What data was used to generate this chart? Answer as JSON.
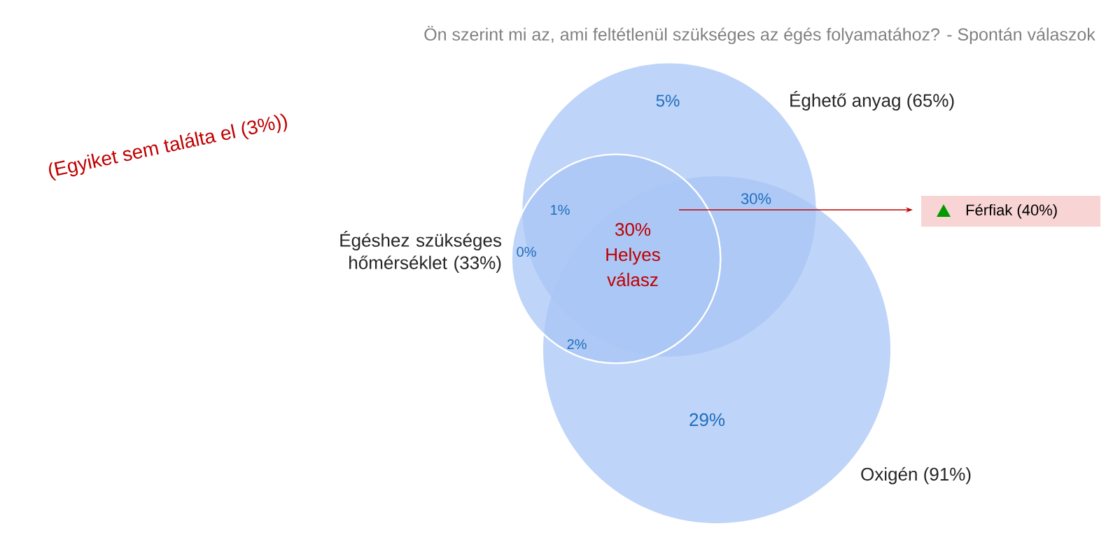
{
  "chart_data": {
    "type": "other",
    "title": "Ön szerint mi az, ami feltétlenül szükséges az égés folyamatához? - Spontán válaszok",
    "categories": [
      "Éghető anyag",
      "Égéshez szükséges hőmérséklet",
      "Oxigén"
    ],
    "values": [
      65,
      33,
      91
    ],
    "value_labels": [
      "(65%)",
      "(33%)",
      "(91%)"
    ],
    "colors": [
      "#a8c5f5",
      "#a8c5f5",
      "#a8c5f5"
    ],
    "annotations": [
      "5%",
      "1%",
      "0%",
      "2%",
      "30% Helyes válasz",
      "30%",
      "29%",
      "Férfiak (40%)",
      "(Egyiket sem találta el (3%))"
    ]
  }
}
